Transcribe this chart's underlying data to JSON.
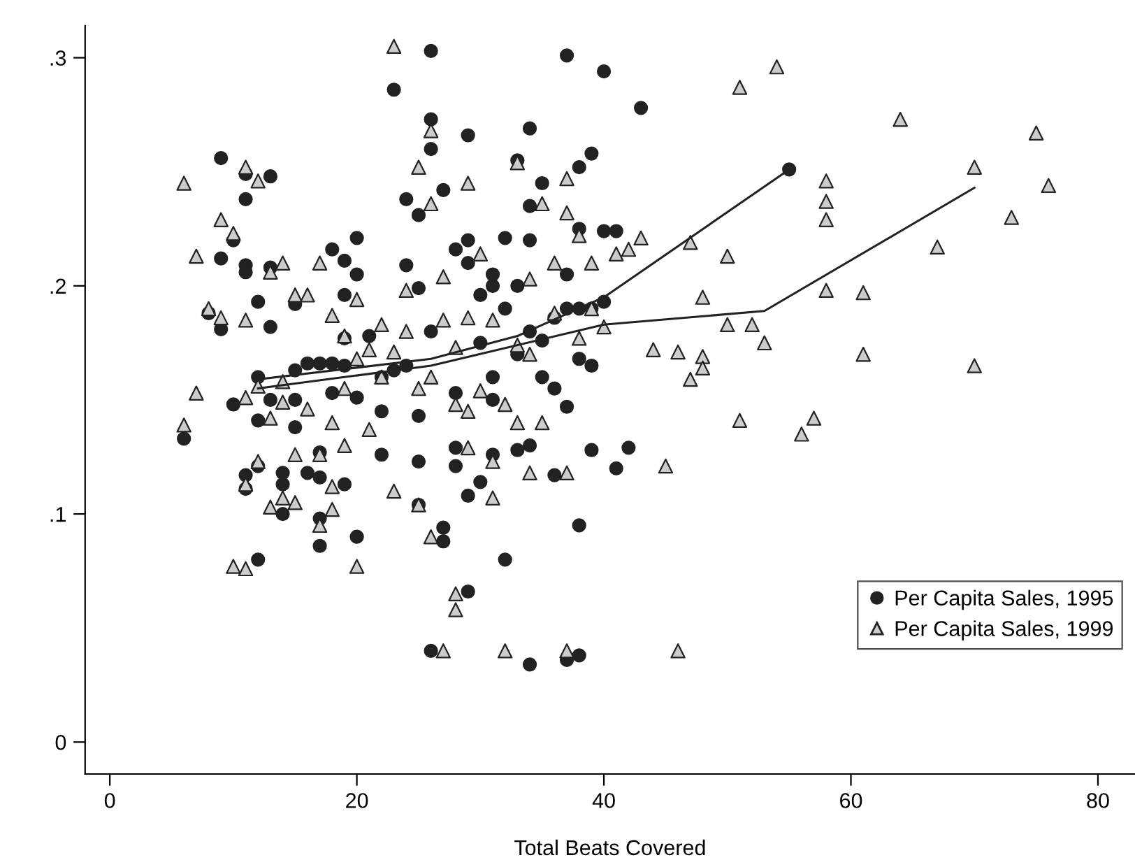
{
  "chart_data": {
    "type": "scatter",
    "xlabel": "Total Beats Covered",
    "xlim": [
      -2,
      83
    ],
    "ylim": [
      -0.014,
      0.314
    ],
    "xticks": [
      0,
      20,
      40,
      60,
      80
    ],
    "yticks": [
      0,
      {
        "value": 0.1,
        "label": ".1"
      },
      {
        "value": 0.2,
        "label": ".2"
      },
      {
        "value": 0.3,
        "label": ".3"
      }
    ],
    "grid": false,
    "legend": "bottom right",
    "series": [
      {
        "name": "Per Capita Sales, 1995",
        "marker": "circle",
        "color": "#222222",
        "x": [
          6,
          8,
          9,
          9,
          9,
          10,
          10,
          11,
          11,
          11,
          11,
          11,
          11,
          12,
          12,
          12,
          12,
          12,
          13,
          13,
          13,
          13,
          14,
          14,
          14,
          15,
          15,
          15,
          15,
          16,
          16,
          17,
          17,
          17,
          17,
          17,
          18,
          18,
          18,
          19,
          19,
          19,
          19,
          19,
          20,
          20,
          20,
          20,
          21,
          22,
          22,
          22,
          23,
          23,
          24,
          24,
          24,
          25,
          25,
          25,
          25,
          25,
          26,
          26,
          26,
          26,
          26,
          27,
          27,
          27,
          28,
          28,
          28,
          28,
          29,
          29,
          29,
          29,
          29,
          30,
          30,
          30,
          31,
          31,
          31,
          31,
          31,
          32,
          32,
          32,
          33,
          33,
          33,
          33,
          34,
          34,
          34,
          34,
          34,
          34,
          35,
          35,
          35,
          36,
          36,
          36,
          37,
          37,
          37,
          37,
          37,
          38,
          38,
          38,
          38,
          38,
          38,
          39,
          39,
          39,
          39,
          40,
          40,
          40,
          41,
          41,
          42,
          43,
          55
        ],
        "values": [
          0.133,
          0.188,
          0.256,
          0.212,
          0.181,
          0.22,
          0.148,
          0.249,
          0.238,
          0.209,
          0.206,
          0.117,
          0.111,
          0.193,
          0.16,
          0.141,
          0.121,
          0.08,
          0.248,
          0.208,
          0.182,
          0.15,
          0.118,
          0.113,
          0.1,
          0.192,
          0.163,
          0.15,
          0.138,
          0.118,
          0.166,
          0.166,
          0.098,
          0.086,
          0.116,
          0.127,
          0.216,
          0.166,
          0.153,
          0.211,
          0.196,
          0.177,
          0.165,
          0.113,
          0.221,
          0.205,
          0.09,
          0.151,
          0.178,
          0.16,
          0.145,
          0.126,
          0.286,
          0.163,
          0.238,
          0.209,
          0.165,
          0.231,
          0.199,
          0.143,
          0.123,
          0.104,
          0.303,
          0.273,
          0.26,
          0.18,
          0.04,
          0.242,
          0.094,
          0.088,
          0.216,
          0.153,
          0.129,
          0.121,
          0.266,
          0.22,
          0.21,
          0.108,
          0.066,
          0.196,
          0.175,
          0.114,
          0.2,
          0.205,
          0.16,
          0.15,
          0.126,
          0.221,
          0.19,
          0.08,
          0.255,
          0.2,
          0.17,
          0.128,
          0.269,
          0.235,
          0.22,
          0.18,
          0.13,
          0.034,
          0.245,
          0.176,
          0.16,
          0.186,
          0.155,
          0.117,
          0.301,
          0.205,
          0.19,
          0.147,
          0.036,
          0.252,
          0.225,
          0.19,
          0.168,
          0.095,
          0.038,
          0.258,
          0.19,
          0.165,
          0.128,
          0.294,
          0.224,
          0.193,
          0.224,
          0.12,
          0.129,
          0.278,
          0.251
        ]
      },
      {
        "name": "Per Capita Sales, 1999",
        "marker": "triangle",
        "color": "#cccccc",
        "x": [
          6,
          6,
          7,
          7,
          8,
          9,
          9,
          10,
          10,
          11,
          11,
          11,
          11,
          11,
          12,
          12,
          12,
          13,
          13,
          13,
          14,
          14,
          14,
          14,
          15,
          15,
          15,
          16,
          16,
          17,
          17,
          17,
          18,
          18,
          18,
          18,
          19,
          19,
          19,
          20,
          20,
          20,
          21,
          21,
          22,
          22,
          23,
          23,
          23,
          24,
          24,
          25,
          25,
          25,
          26,
          26,
          26,
          26,
          27,
          27,
          27,
          28,
          28,
          28,
          28,
          29,
          29,
          29,
          29,
          30,
          30,
          31,
          31,
          31,
          32,
          32,
          33,
          33,
          33,
          34,
          34,
          34,
          35,
          35,
          36,
          36,
          37,
          37,
          37,
          37,
          38,
          38,
          39,
          39,
          40,
          41,
          42,
          43,
          44,
          45,
          46,
          46,
          47,
          47,
          48,
          48,
          48,
          50,
          50,
          51,
          51,
          52,
          53,
          54,
          56,
          57,
          58,
          58,
          58,
          58,
          61,
          61,
          64,
          67,
          70,
          70,
          73,
          75,
          76
        ],
        "values": [
          0.245,
          0.139,
          0.213,
          0.153,
          0.19,
          0.229,
          0.186,
          0.223,
          0.077,
          0.252,
          0.185,
          0.151,
          0.113,
          0.076,
          0.246,
          0.156,
          0.123,
          0.206,
          0.142,
          0.103,
          0.21,
          0.158,
          0.149,
          0.107,
          0.196,
          0.126,
          0.105,
          0.196,
          0.146,
          0.21,
          0.126,
          0.095,
          0.187,
          0.14,
          0.112,
          0.102,
          0.178,
          0.155,
          0.13,
          0.194,
          0.168,
          0.077,
          0.172,
          0.137,
          0.183,
          0.16,
          0.305,
          0.171,
          0.11,
          0.198,
          0.18,
          0.252,
          0.155,
          0.104,
          0.268,
          0.236,
          0.16,
          0.09,
          0.204,
          0.185,
          0.04,
          0.065,
          0.058,
          0.173,
          0.148,
          0.245,
          0.186,
          0.145,
          0.129,
          0.214,
          0.154,
          0.185,
          0.123,
          0.107,
          0.148,
          0.04,
          0.254,
          0.174,
          0.14,
          0.203,
          0.17,
          0.118,
          0.236,
          0.14,
          0.21,
          0.188,
          0.247,
          0.232,
          0.118,
          0.04,
          0.222,
          0.177,
          0.21,
          0.19,
          0.182,
          0.214,
          0.216,
          0.221,
          0.172,
          0.121,
          0.171,
          0.04,
          0.219,
          0.159,
          0.195,
          0.169,
          0.164,
          0.213,
          0.183,
          0.287,
          0.141,
          0.183,
          0.175,
          0.296,
          0.135,
          0.142,
          0.246,
          0.237,
          0.229,
          0.198,
          0.197,
          0.17,
          0.273,
          0.217,
          0.252,
          0.165,
          0.23,
          0.267,
          0.244
        ]
      },
      {
        "type": "line",
        "color": "#222222",
        "x": [
          12,
          26,
          33,
          40,
          55
        ],
        "values": [
          0.159,
          0.168,
          0.178,
          0.195,
          0.251
        ]
      },
      {
        "type": "line",
        "color": "#222222",
        "x": [
          12,
          26,
          40,
          53,
          70
        ],
        "values": [
          0.155,
          0.165,
          0.183,
          0.189,
          0.243
        ]
      }
    ]
  }
}
